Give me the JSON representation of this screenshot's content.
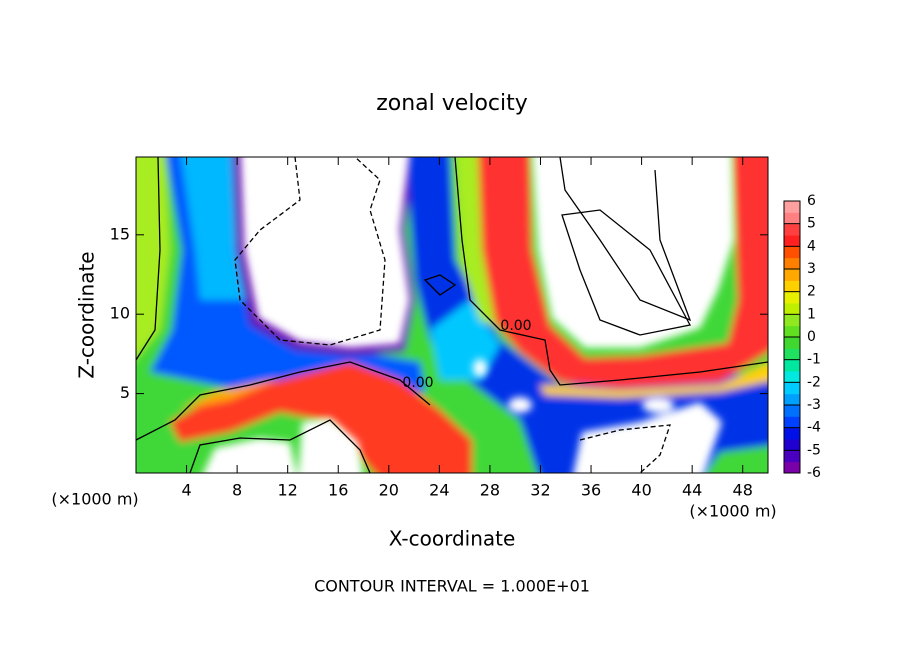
{
  "chart_data": {
    "type": "contour",
    "title": "zonal velocity",
    "x_label": "X-coordinate",
    "y_label": "Z-coordinate",
    "x_unit_label": "(×1000 m)",
    "y_unit_label": "(×1000 m)",
    "footnote": "CONTOUR INTERVAL = 1.000E+01",
    "contour_labels": [
      "0.00",
      "0.00"
    ],
    "xlim": [
      0,
      50
    ],
    "xticks": [
      4,
      8,
      12,
      16,
      20,
      24,
      28,
      32,
      36,
      40,
      44,
      48
    ],
    "ylim": [
      0,
      19.9
    ],
    "yticks": [
      5,
      10,
      15
    ],
    "colorbar": {
      "lim": [
        -6,
        6
      ],
      "ticks": [
        -6,
        -5,
        -4,
        -3,
        -2,
        -1,
        0,
        1,
        2,
        3,
        4,
        5,
        6
      ],
      "colors": [
        "#7a00a8",
        "#4a00c0",
        "#2000d0",
        "#0010e8",
        "#0040ff",
        "#0070ff",
        "#00a0ff",
        "#00ccff",
        "#00e8e0",
        "#00e8a0",
        "#20e060",
        "#40d830",
        "#60e020",
        "#90e820",
        "#c0f000",
        "#e8f000",
        "#ffd000",
        "#ffa800",
        "#ff8000",
        "#ff5000",
        "#ff2020",
        "#ff4040",
        "#ff8080",
        "#ffa0a0"
      ]
    }
  }
}
